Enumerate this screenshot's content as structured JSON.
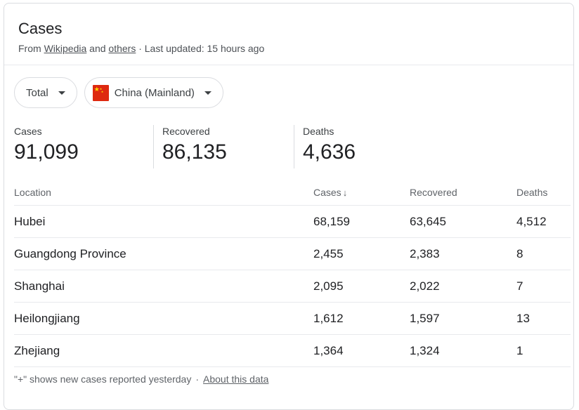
{
  "header": {
    "title": "Cases",
    "from_prefix": "From",
    "source_link": "Wikipedia",
    "and_text": "and",
    "others_link": "others",
    "updated": "· Last updated: 15 hours ago"
  },
  "filters": {
    "type_label": "Total",
    "country_label": "China (Mainland)",
    "country_flag_icon": "china-flag-icon"
  },
  "summary": {
    "cases_label": "Cases",
    "cases_value": "91,099",
    "recovered_label": "Recovered",
    "recovered_value": "86,135",
    "deaths_label": "Deaths",
    "deaths_value": "4,636"
  },
  "table": {
    "headers": {
      "location": "Location",
      "cases": "Cases",
      "recovered": "Recovered",
      "deaths": "Deaths"
    },
    "rows": [
      {
        "location": "Hubei",
        "cases": "68,159",
        "recovered": "63,645",
        "deaths": "4,512"
      },
      {
        "location": "Guangdong Province",
        "cases": "2,455",
        "recovered": "2,383",
        "deaths": "8"
      },
      {
        "location": "Shanghai",
        "cases": "2,095",
        "recovered": "2,022",
        "deaths": "7"
      },
      {
        "location": "Heilongjiang",
        "cases": "1,612",
        "recovered": "1,597",
        "deaths": "13"
      },
      {
        "location": "Zhejiang",
        "cases": "1,364",
        "recovered": "1,324",
        "deaths": "1"
      }
    ]
  },
  "footer": {
    "note": "\"+\" shows new cases reported yesterday",
    "dot": "·",
    "about_link": "About this data"
  }
}
